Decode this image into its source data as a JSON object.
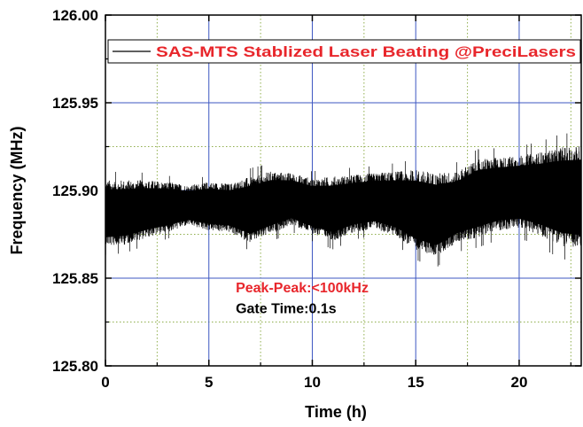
{
  "chart_data": {
    "type": "line",
    "title": "",
    "xlabel": "Time (h)",
    "ylabel": "Frequency (MHz)",
    "xlim": [
      0,
      23
    ],
    "ylim": [
      125.8,
      126.0
    ],
    "xticks": [
      0,
      5,
      10,
      15,
      20
    ],
    "xtick_labels": [
      "0",
      "5",
      "10",
      "15",
      "20"
    ],
    "yticks": [
      125.8,
      125.85,
      125.9,
      125.95,
      126.0
    ],
    "ytick_labels": [
      "125.80",
      "125.85",
      "125.90",
      "125.95",
      "126.00"
    ],
    "grid": true,
    "legend_position": "top",
    "series": [
      {
        "name": "SAS-MTS Stablized Laser Beating @PreciLasers",
        "color": "#000000",
        "x": [
          0,
          1,
          2,
          3,
          4,
          5,
          6,
          7,
          8,
          9,
          10,
          11,
          12,
          13,
          14,
          15,
          16,
          17,
          18,
          19,
          20,
          21,
          22,
          23
        ],
        "upper": [
          125.906,
          125.906,
          125.906,
          125.905,
          125.903,
          125.905,
          125.904,
          125.908,
          125.911,
          125.91,
          125.907,
          125.908,
          125.909,
          125.91,
          125.911,
          125.912,
          125.91,
          125.911,
          125.918,
          125.919,
          125.92,
          125.922,
          125.925,
          125.926
        ],
        "lower": [
          125.868,
          125.869,
          125.873,
          125.876,
          125.88,
          125.877,
          125.876,
          125.87,
          125.875,
          125.88,
          125.875,
          125.871,
          125.876,
          125.878,
          125.874,
          125.866,
          125.862,
          125.87,
          125.873,
          125.877,
          125.878,
          125.874,
          125.868,
          125.866
        ]
      }
    ],
    "annotations": [
      {
        "text": "Peak-Peak:<100kHz",
        "color": "#e8262b",
        "x": 6.3,
        "y": 125.842
      },
      {
        "text": "Gate Time:0.1s",
        "color": "#000000",
        "x": 6.3,
        "y": 125.83
      }
    ],
    "colors": {
      "axis": "#000000",
      "major_grid": "#3d57c2",
      "minor_grid": "#8fae4c",
      "legend_text": "#e8262b",
      "background": "#ffffff"
    }
  }
}
